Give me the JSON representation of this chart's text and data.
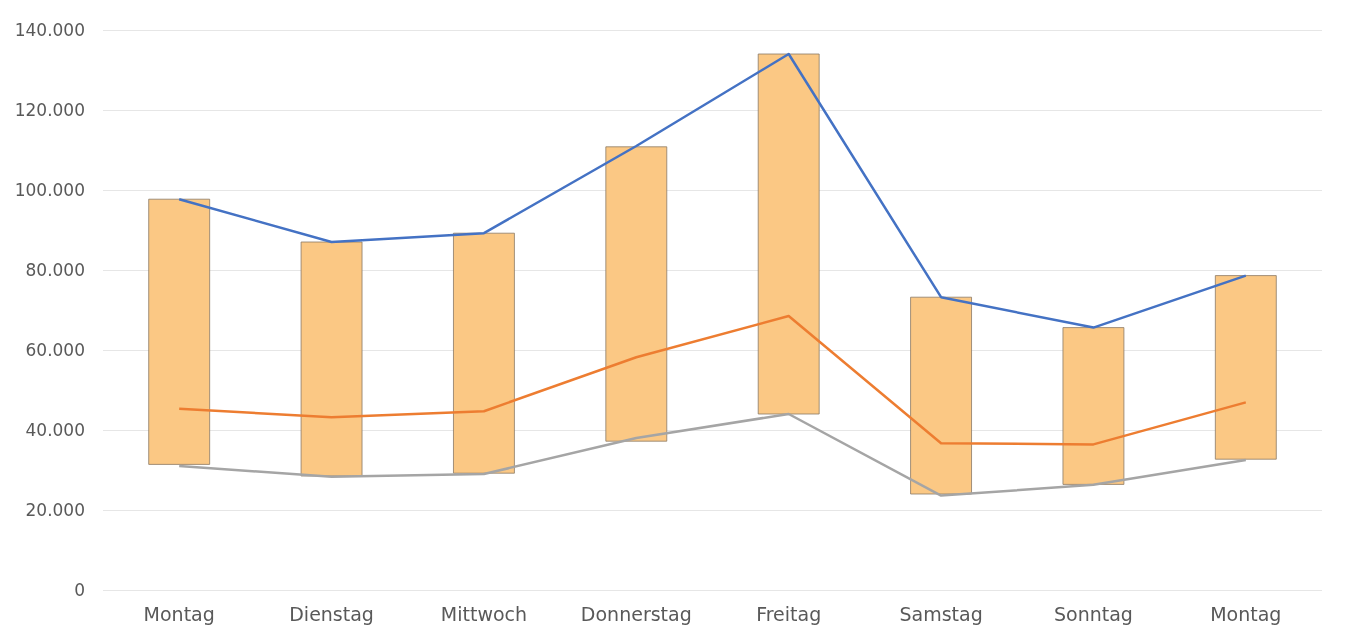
{
  "chart_data": {
    "type": "bar",
    "categories": [
      "Montag",
      "Dienstag",
      "Mittwoch",
      "Donnerstag",
      "Freitag",
      "Samstag",
      "Sonntag",
      "Montag"
    ],
    "series": [
      {
        "color": "#fbc884",
        "base": [
          31400,
          28500,
          29200,
          37200,
          44000,
          24000,
          26400,
          32700
        ],
        "values": [
          66300,
          58500,
          60000,
          73600,
          90000,
          49200,
          39200,
          45900
        ]
      },
      {
        "type": "line",
        "color": "#a5a5a5",
        "values": [
          31000,
          28300,
          29000,
          38000,
          44000,
          23600,
          26300,
          32500
        ]
      },
      {
        "type": "line",
        "color": "#ed7d31",
        "values": [
          45300,
          43200,
          44700,
          58200,
          68500,
          36700,
          36400,
          46900
        ]
      },
      {
        "type": "line",
        "color": "#4472c4",
        "values": [
          97700,
          87000,
          89200,
          111000,
          134000,
          73200,
          65600,
          78600
        ]
      }
    ],
    "ylim": [
      0,
      140000
    ],
    "yticks": [
      {
        "value": 0,
        "label": "0"
      },
      {
        "value": 20000,
        "label": "20.000"
      },
      {
        "value": 40000,
        "label": "40.000"
      },
      {
        "value": 60000,
        "label": "60.000"
      },
      {
        "value": 80000,
        "label": "80.000"
      },
      {
        "value": 100000,
        "label": "100.000"
      },
      {
        "value": 120000,
        "label": "120.000"
      },
      {
        "value": 140000,
        "label": "140.000"
      }
    ],
    "grid": "y"
  }
}
